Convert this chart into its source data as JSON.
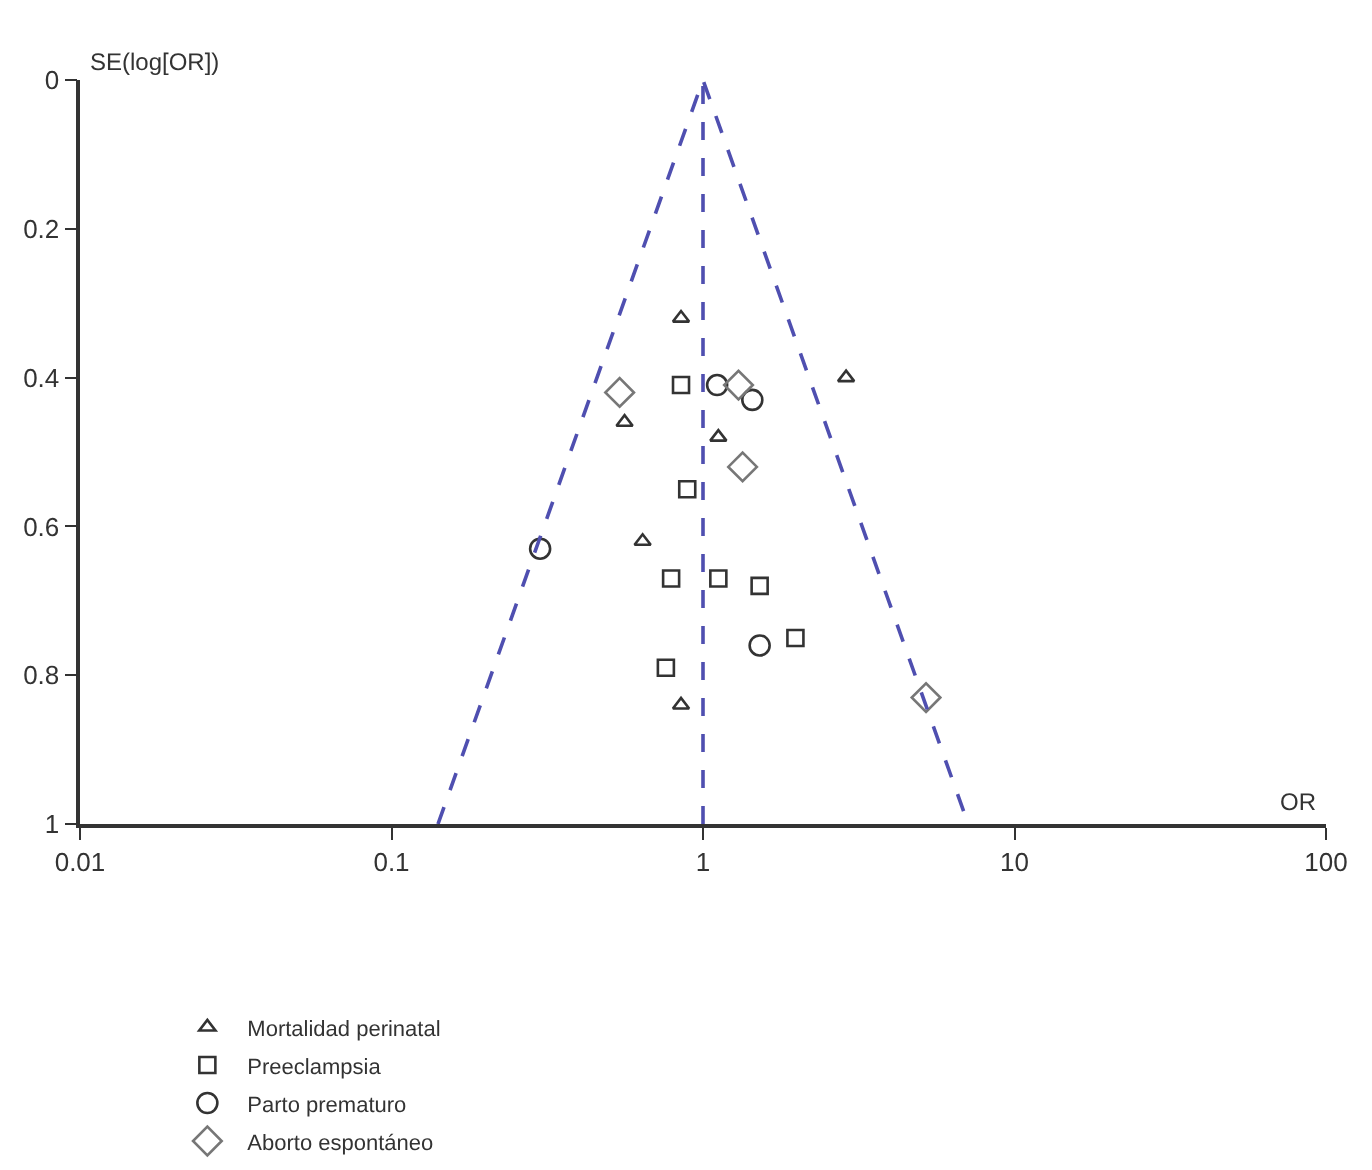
{
  "chart_data": {
    "type": "scatter",
    "xlabel": "OR",
    "ylabel": "SE(log[OR])",
    "log": "x",
    "xlim": [
      0.01,
      100
    ],
    "xticks": [
      0.01,
      0.1,
      1,
      10,
      100
    ],
    "ylim": [
      1,
      0
    ],
    "yticks": [
      0,
      0.2,
      0.4,
      0.6,
      0.8,
      1
    ],
    "legend": "bottom",
    "ref_lines": [
      {
        "axis": "x",
        "value": 1,
        "color": "#4f4fb0",
        "line_style": "dashed"
      }
    ],
    "series": [
      {
        "name": "Mortalidad perinatal",
        "marker": "triangle",
        "color": "#333333",
        "x": [
          0.85,
          2.88,
          0.56,
          1.12,
          0.64,
          0.85
        ],
        "values": [
          0.32,
          0.4,
          0.46,
          0.48,
          0.62,
          0.84
        ]
      },
      {
        "name": "Preeclampsia",
        "marker": "square",
        "color": "#333333",
        "x": [
          0.85,
          0.89,
          0.79,
          1.12,
          1.52,
          1.98,
          0.76
        ],
        "values": [
          0.41,
          0.55,
          0.67,
          0.67,
          0.68,
          0.75,
          0.79
        ]
      },
      {
        "name": "Parto prematuro",
        "marker": "circle",
        "color": "#333333",
        "x": [
          0.3,
          1.11,
          1.44,
          1.52
        ],
        "values": [
          0.63,
          0.41,
          0.43,
          0.76
        ]
      },
      {
        "name": "Aborto espontáneo",
        "marker": "diamond",
        "color": "#777777",
        "x": [
          0.54,
          1.3,
          1.34,
          5.2
        ],
        "values": [
          0.42,
          0.41,
          0.52,
          0.83
        ]
      },
      {
        "type": "line",
        "line_style": "dashed",
        "marker": "none",
        "color": "#4f4fb0",
        "x": [
          0.141,
          1,
          7.1
        ],
        "values": [
          1,
          0,
          1
        ]
      }
    ]
  }
}
